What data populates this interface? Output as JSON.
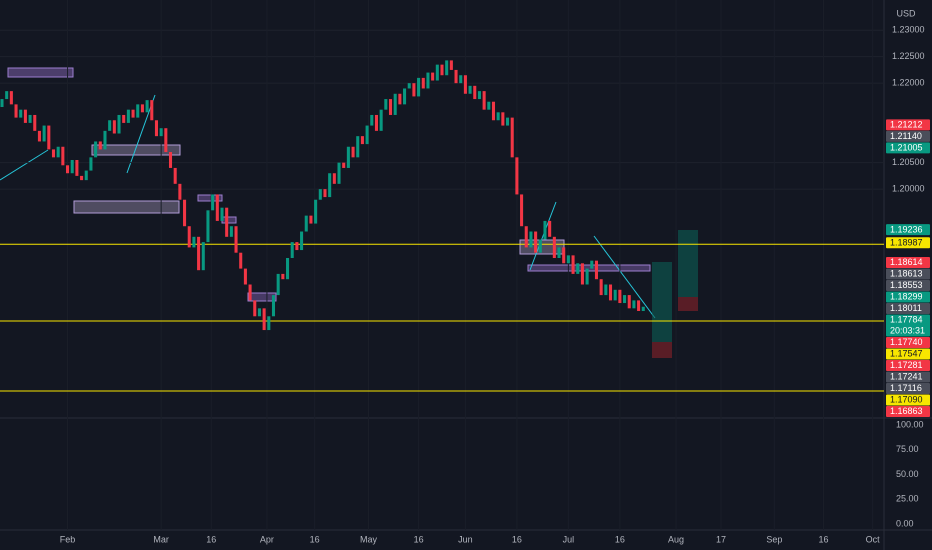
{
  "chart_data": {
    "type": "candlestick",
    "currency": "USD",
    "open": [
      1.2155,
      1.217,
      1.2185,
      1.216,
      1.2135,
      1.215,
      1.2125,
      1.214,
      1.211,
      1.209,
      1.212,
      1.2075,
      1.206,
      1.208,
      1.2045,
      1.203,
      1.2055,
      1.2025,
      1.2017,
      1.2035,
      1.206,
      1.209,
      1.2075,
      1.211,
      1.213,
      1.2105,
      1.214,
      1.2125,
      1.215,
      1.2135,
      1.216,
      1.2145,
      1.2168,
      1.213,
      1.21,
      1.2115,
      1.207,
      1.204,
      1.201,
      1.198,
      1.193,
      1.189,
      1.191,
      1.1847,
      1.19,
      1.196,
      1.199,
      1.194,
      1.1965,
      1.191,
      1.193,
      1.188,
      1.185,
      1.182,
      1.179,
      1.176,
      1.1775,
      1.1734,
      1.176,
      1.18,
      1.184,
      1.183,
      1.187,
      1.19,
      1.1885,
      1.192,
      1.195,
      1.1935,
      1.198,
      1.2,
      1.1985,
      1.203,
      1.201,
      1.205,
      1.204,
      1.208,
      1.206,
      1.21,
      1.2085,
      1.212,
      1.214,
      1.211,
      1.215,
      1.217,
      1.214,
      1.218,
      1.216,
      1.219,
      1.22,
      1.2175,
      1.221,
      1.219,
      1.222,
      1.2205,
      1.2235,
      1.2215,
      1.2243,
      1.2225,
      1.22,
      1.2215,
      1.218,
      1.2195,
      1.217,
      1.2185,
      1.215,
      1.2165,
      1.213,
      1.2145,
      1.212,
      1.2135,
      1.206,
      1.199,
      1.193,
      1.189,
      1.192,
      1.188,
      1.1905,
      1.194,
      1.191,
      1.187,
      1.189,
      1.186,
      1.1875,
      1.184,
      1.186,
      1.182,
      1.185,
      1.1865,
      1.183,
      1.18,
      1.182,
      1.179,
      1.181,
      1.1785,
      1.18,
      1.1775,
      1.179,
      1.177
    ],
    "close": [
      1.217,
      1.2185,
      1.216,
      1.2135,
      1.215,
      1.2125,
      1.214,
      1.211,
      1.209,
      1.212,
      1.2075,
      1.206,
      1.208,
      1.2045,
      1.203,
      1.2055,
      1.2025,
      1.2017,
      1.2035,
      1.206,
      1.209,
      1.2075,
      1.211,
      1.213,
      1.2105,
      1.214,
      1.2125,
      1.215,
      1.2135,
      1.216,
      1.2145,
      1.2168,
      1.213,
      1.21,
      1.2115,
      1.207,
      1.204,
      1.201,
      1.198,
      1.193,
      1.189,
      1.191,
      1.1847,
      1.19,
      1.196,
      1.199,
      1.194,
      1.1965,
      1.191,
      1.193,
      1.188,
      1.185,
      1.182,
      1.179,
      1.176,
      1.1775,
      1.1734,
      1.176,
      1.18,
      1.184,
      1.183,
      1.187,
      1.19,
      1.1885,
      1.192,
      1.195,
      1.1935,
      1.198,
      1.2,
      1.1985,
      1.203,
      1.201,
      1.205,
      1.204,
      1.208,
      1.206,
      1.21,
      1.2085,
      1.212,
      1.214,
      1.211,
      1.215,
      1.217,
      1.214,
      1.218,
      1.216,
      1.219,
      1.22,
      1.2175,
      1.221,
      1.219,
      1.222,
      1.2205,
      1.2235,
      1.2215,
      1.2243,
      1.2225,
      1.22,
      1.2215,
      1.218,
      1.2195,
      1.217,
      1.2185,
      1.215,
      1.2165,
      1.213,
      1.2145,
      1.212,
      1.2135,
      1.206,
      1.199,
      1.193,
      1.189,
      1.192,
      1.188,
      1.1905,
      1.194,
      1.191,
      1.187,
      1.189,
      1.186,
      1.1875,
      1.184,
      1.186,
      1.182,
      1.185,
      1.1865,
      1.183,
      1.18,
      1.182,
      1.179,
      1.181,
      1.1785,
      1.18,
      1.1775,
      1.179,
      1.177,
      1.1778
    ],
    "up_color": "#089981",
    "down_color": "#f23645",
    "xlim": [
      0,
      188
    ],
    "xticks": [
      {
        "value": 14,
        "label": "Feb"
      },
      {
        "value": 34,
        "label": "Mar"
      },
      {
        "value": 44.7,
        "label": "16"
      },
      {
        "value": 56.6,
        "label": "Apr"
      },
      {
        "value": 66.8,
        "label": "16"
      },
      {
        "value": 78.3,
        "label": "May"
      },
      {
        "value": 89,
        "label": "16"
      },
      {
        "value": 99,
        "label": "Jun"
      },
      {
        "value": 110,
        "label": "16"
      },
      {
        "value": 121,
        "label": "Jul"
      },
      {
        "value": 132,
        "label": "16"
      },
      {
        "value": 144,
        "label": "Aug"
      },
      {
        "value": 153.6,
        "label": "17"
      },
      {
        "value": 165,
        "label": "Sep"
      },
      {
        "value": 175.5,
        "label": "16"
      },
      {
        "value": 186,
        "label": "Oct"
      }
    ],
    "ylim": [
      1.1568,
      1.2357
    ],
    "yticks": [
      {
        "value": 1.23,
        "label": "1.23000"
      },
      {
        "value": 1.225,
        "label": "1.22500"
      },
      {
        "value": 1.22,
        "label": "1.22000"
      },
      {
        "value": 1.205,
        "label": "1.20500"
      },
      {
        "value": 1.2,
        "label": "1.20000"
      }
    ],
    "levels": [
      1.1896,
      1.1751,
      1.1619
    ],
    "level_color": "#f7e600",
    "price_tags": [
      {
        "value": 1.21212,
        "label": "1.21212",
        "color": "#f23645"
      },
      {
        "value": 1.2114,
        "label": "1.21140",
        "color": "#4a4e5a"
      },
      {
        "value": 1.21005,
        "label": "1.21005",
        "color": "#089981"
      },
      {
        "value": 1.19236,
        "label": "1.19236",
        "color": "#089981"
      },
      {
        "value": 1.18987,
        "label": "1.18987",
        "color": "#f7e600"
      },
      {
        "value": 1.18614,
        "label": "1.18614",
        "color": "#f23645"
      },
      {
        "value": 1.18613,
        "label": "1.18613",
        "color": "#4a4e5a"
      },
      {
        "value": 1.18553,
        "label": "1.18553",
        "color": "#4a4e5a"
      },
      {
        "value": 1.18299,
        "label": "1.18299",
        "color": "#089981"
      },
      {
        "value": 1.18011,
        "label": "1.18011",
        "color": "#4a4e5a"
      },
      {
        "value": 1.17784,
        "label": "1.17784",
        "color": "#089981",
        "countdown": "20:03:31"
      },
      {
        "value": 1.1774,
        "label": "1.17740",
        "color": "#f23645"
      },
      {
        "value": 1.17547,
        "label": "1.17547",
        "color": "#f7e600"
      },
      {
        "value": 1.17281,
        "label": "1.17281",
        "color": "#f23645"
      },
      {
        "value": 1.17241,
        "label": "1.17241",
        "color": "#4a4e5a"
      },
      {
        "value": 1.17116,
        "label": "1.17116",
        "color": "#4a4e5a"
      },
      {
        "value": 1.1709,
        "label": "1.17090",
        "color": "#f7e600"
      },
      {
        "value": 1.16863,
        "label": "1.16863",
        "color": "#f23645"
      }
    ],
    "osc_ylim": [
      0,
      100
    ],
    "osc_yticks": [
      {
        "value": 100,
        "label": "100.00"
      },
      {
        "value": 75,
        "label": "75.00"
      },
      {
        "value": 50,
        "label": "50.00"
      },
      {
        "value": 25,
        "label": "25.00"
      },
      {
        "value": 0,
        "label": "0.00"
      }
    ]
  }
}
